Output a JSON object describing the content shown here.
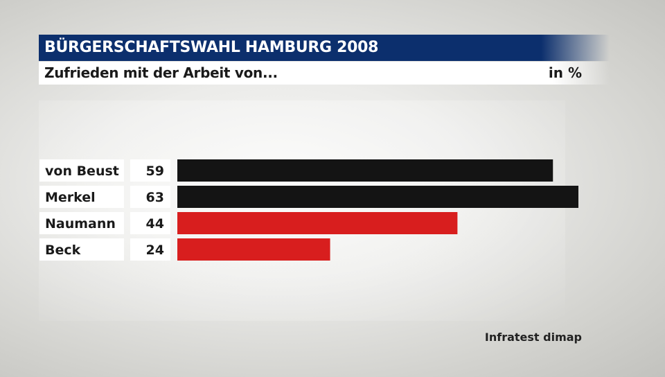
{
  "header": {
    "title": "BÜRGERSCHAFTSWAHL HAMBURG 2008",
    "subtitle": "Zufrieden mit der Arbeit von...",
    "unit": "in %"
  },
  "source": "Infratest dimap",
  "colors": {
    "title_bar": "#0c2f6d",
    "bar_black": "#141414",
    "bar_red": "#d81e1e"
  },
  "chart_data": {
    "type": "bar",
    "orientation": "horizontal",
    "title": "BÜRGERSCHAFTSWAHL HAMBURG 2008",
    "subtitle": "Zufrieden mit der Arbeit von...",
    "unit": "in %",
    "categories": [
      "von Beust",
      "Merkel",
      "Naumann",
      "Beck"
    ],
    "values": [
      59,
      63,
      44,
      24
    ],
    "bar_colors": [
      "#141414",
      "#141414",
      "#d81e1e",
      "#d81e1e"
    ],
    "xlim": [
      0,
      63
    ],
    "grid": false,
    "legend": "none"
  }
}
